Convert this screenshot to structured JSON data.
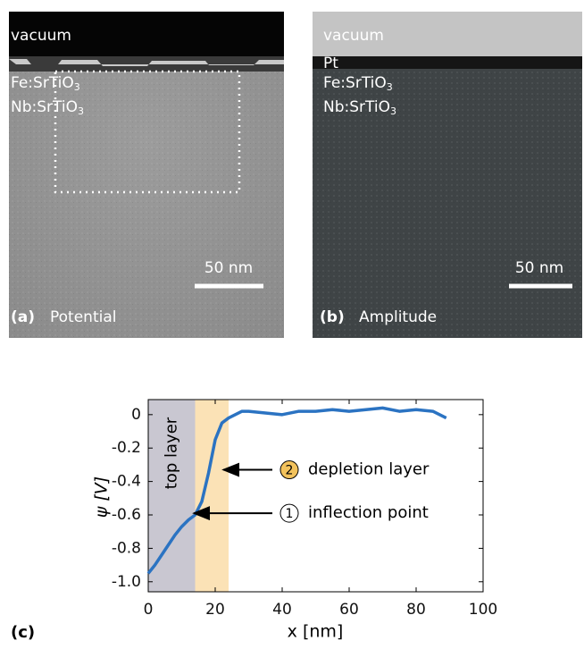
{
  "panels": [
    {
      "label": "(a)",
      "title": "Potential",
      "scale_bar": "50 nm",
      "layers": [
        {
          "text": "vacuum"
        },
        {
          "text": "Fe:SrTiO",
          "sub": "3"
        },
        {
          "text": "Nb:SrTiO",
          "sub": "3"
        }
      ]
    },
    {
      "label": "(b)",
      "title": "Amplitude",
      "scale_bar": "50 nm",
      "layers": [
        {
          "text": "vacuum"
        },
        {
          "text": "Pt"
        },
        {
          "text": "Fe:SrTiO",
          "sub": "3"
        },
        {
          "text": "Nb:SrTiO",
          "sub": "3"
        }
      ]
    }
  ],
  "chart_data": {
    "type": "line",
    "panel_label": "(c)",
    "x_label": "x [nm]",
    "y_label": "ψ [V]",
    "x": [
      0,
      2,
      4,
      6,
      8,
      10,
      12,
      14,
      16,
      18,
      20,
      22,
      24,
      26,
      28,
      30,
      35,
      40,
      45,
      50,
      55,
      60,
      65,
      70,
      75,
      80,
      85,
      89
    ],
    "series": [
      {
        "color": "#2b73c2",
        "values": [
          -0.95,
          -0.9,
          -0.84,
          -0.78,
          -0.72,
          -0.67,
          -0.63,
          -0.6,
          -0.52,
          -0.35,
          -0.15,
          -0.05,
          -0.02,
          0.0,
          0.02,
          0.02,
          0.01,
          0.0,
          0.02,
          0.02,
          0.03,
          0.02,
          0.03,
          0.04,
          0.02,
          0.03,
          0.02,
          -0.02
        ]
      }
    ],
    "regions": [
      {
        "label": "top layer",
        "x": [
          0,
          14
        ],
        "color": "#c9c7d1"
      },
      {
        "x": [
          14,
          24
        ],
        "color": "#fbe2b6"
      }
    ],
    "annotations": [
      {
        "marker": "2",
        "text": "depletion layer",
        "xy": [
          21.9,
          -0.33
        ],
        "color": "#f2c25c"
      },
      {
        "marker": "1",
        "text": "inflection point",
        "xy": [
          13.1,
          -0.59
        ],
        "color": "#ffffff"
      }
    ],
    "xlim": [
      0,
      100
    ],
    "xticks": [
      0,
      20,
      40,
      60,
      80,
      100
    ],
    "ylim": [
      -1.06,
      0.09
    ],
    "yticks": [
      0,
      -0.2,
      -0.4,
      -0.6,
      -0.8,
      {
        "value": -1,
        "label": "-1.0"
      }
    ]
  }
}
